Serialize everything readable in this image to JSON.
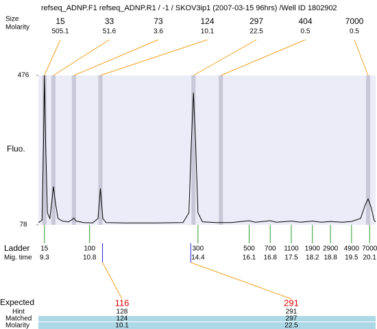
{
  "chart_data": {
    "type": "line",
    "title": "refseq_ADNP.F1  refseq_ADNP.R1  / -1  / SKOV3ip1 (2007-03-15 96hrs) /Well ID 1802902",
    "y_label": "Fluo.",
    "ylim": [
      78,
      476
    ],
    "yticks": [
      78,
      476
    ],
    "xlim": [
      9.1,
      20.3
    ],
    "color": "#000000",
    "x": [
      9.1,
      9.22,
      9.27,
      9.3,
      9.34,
      9.4,
      9.48,
      9.56,
      9.6,
      9.66,
      9.75,
      9.9,
      10.1,
      10.22,
      10.28,
      10.35,
      10.6,
      10.9,
      11.08,
      11.16,
      11.24,
      11.35,
      12,
      13,
      13.9,
      14.1,
      14.18,
      14.25,
      14.32,
      14.4,
      14.55,
      15,
      15.5,
      16.1,
      16.3,
      16.8,
      17,
      17.5,
      17.8,
      18.2,
      18.5,
      18.8,
      19.2,
      19.5,
      19.8,
      19.95,
      20.05,
      20.15,
      20.25,
      20.3
    ],
    "values": [
      84,
      90,
      300,
      476,
      300,
      110,
      95,
      150,
      180,
      140,
      95,
      88,
      86,
      92,
      96,
      88,
      84,
      83,
      95,
      175,
      95,
      84,
      83,
      83,
      84,
      110,
      300,
      430,
      300,
      110,
      86,
      84,
      84,
      89,
      85,
      89,
      85,
      88,
      85,
      88,
      85,
      87,
      85,
      87,
      95,
      130,
      147,
      125,
      90,
      86
    ],
    "peaks": {
      "size_label": "Size",
      "molarity_label": "Molarity",
      "sizes": [
        15,
        33,
        73,
        124,
        297,
        404,
        7000
      ],
      "molarity": [
        505.1,
        51.6,
        3.6,
        10.1,
        22.5,
        0.5,
        0.5
      ],
      "times": [
        9.3,
        9.6,
        10.28,
        11.16,
        14.25,
        15.16,
        20.05
      ]
    },
    "ladder": {
      "label": "Ladder",
      "time_label": "Mig. time",
      "sizes": [
        15,
        100,
        300,
        500,
        700,
        1100,
        1900,
        2900,
        4900,
        7000
      ],
      "times": [
        9.3,
        10.8,
        14.4,
        16.1,
        16.8,
        17.5,
        18.2,
        18.8,
        19.5,
        20.1
      ]
    },
    "expected": {
      "label": "Expected",
      "hint_label": "Hint",
      "matched_label": "Matched",
      "molarity_label": "Molarity",
      "sizes": [
        116,
        291
      ],
      "times": [
        11.23,
        14.16
      ],
      "hint": [
        128,
        291
      ],
      "matched": [
        124,
        297
      ],
      "molarity": [
        10.1,
        22.5
      ]
    }
  }
}
